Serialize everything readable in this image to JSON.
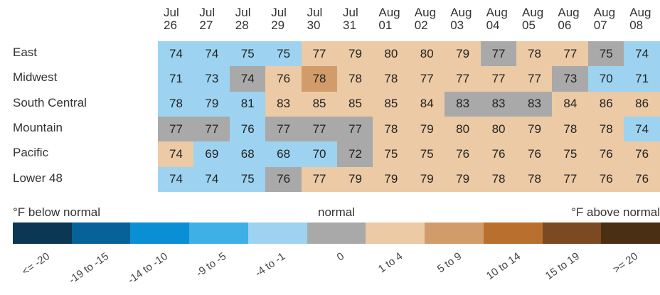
{
  "chart_data": {
    "type": "heatmap",
    "categories": [
      "Jul 26",
      "Jul 27",
      "Jul 28",
      "Jul 29",
      "Jul 30",
      "Jul 31",
      "Aug 01",
      "Aug 02",
      "Aug 03",
      "Aug 04",
      "Aug 05",
      "Aug 06",
      "Aug 07",
      "Aug 08"
    ],
    "series": [
      {
        "name": "East",
        "values": [
          74,
          74,
          75,
          75,
          77,
          79,
          80,
          80,
          79,
          77,
          78,
          77,
          75,
          74
        ],
        "colors": [
          "#9dd3f0",
          "#9dd3f0",
          "#9dd3f0",
          "#9dd3f0",
          "#ebcaa5",
          "#ebcaa5",
          "#ebcaa5",
          "#ebcaa5",
          "#ebcaa5",
          "#a9a9a9",
          "#ebcaa5",
          "#ebcaa5",
          "#a9a9a9",
          "#9dd3f0"
        ]
      },
      {
        "name": "Midwest",
        "values": [
          71,
          73,
          74,
          76,
          78,
          78,
          78,
          77,
          77,
          77,
          77,
          73,
          70,
          71
        ],
        "colors": [
          "#9dd3f0",
          "#9dd3f0",
          "#a9a9a9",
          "#ebcaa5",
          "#d29c6a",
          "#ebcaa5",
          "#ebcaa5",
          "#ebcaa5",
          "#ebcaa5",
          "#ebcaa5",
          "#ebcaa5",
          "#a9a9a9",
          "#9dd3f0",
          "#9dd3f0"
        ]
      },
      {
        "name": "South Central",
        "values": [
          78,
          79,
          81,
          83,
          85,
          85,
          85,
          84,
          83,
          83,
          83,
          84,
          86,
          86
        ],
        "colors": [
          "#9dd3f0",
          "#9dd3f0",
          "#9dd3f0",
          "#ebcaa5",
          "#ebcaa5",
          "#ebcaa5",
          "#ebcaa5",
          "#ebcaa5",
          "#a9a9a9",
          "#a9a9a9",
          "#a9a9a9",
          "#ebcaa5",
          "#ebcaa5",
          "#ebcaa5"
        ]
      },
      {
        "name": "Mountain",
        "values": [
          77,
          77,
          76,
          77,
          77,
          77,
          78,
          79,
          80,
          80,
          79,
          78,
          78,
          74
        ],
        "colors": [
          "#a9a9a9",
          "#a9a9a9",
          "#9dd3f0",
          "#a9a9a9",
          "#a9a9a9",
          "#a9a9a9",
          "#ebcaa5",
          "#ebcaa5",
          "#ebcaa5",
          "#ebcaa5",
          "#ebcaa5",
          "#ebcaa5",
          "#ebcaa5",
          "#9dd3f0"
        ]
      },
      {
        "name": "Pacific",
        "values": [
          74,
          69,
          68,
          68,
          70,
          72,
          75,
          75,
          76,
          76,
          76,
          75,
          76,
          76
        ],
        "colors": [
          "#ebcaa5",
          "#9dd3f0",
          "#9dd3f0",
          "#9dd3f0",
          "#9dd3f0",
          "#a9a9a9",
          "#ebcaa5",
          "#ebcaa5",
          "#ebcaa5",
          "#ebcaa5",
          "#ebcaa5",
          "#ebcaa5",
          "#ebcaa5",
          "#ebcaa5"
        ]
      },
      {
        "name": "Lower 48",
        "values": [
          74,
          74,
          75,
          76,
          77,
          79,
          79,
          79,
          79,
          78,
          78,
          77,
          76,
          76
        ],
        "colors": [
          "#9dd3f0",
          "#9dd3f0",
          "#9dd3f0",
          "#a9a9a9",
          "#ebcaa5",
          "#ebcaa5",
          "#ebcaa5",
          "#ebcaa5",
          "#ebcaa5",
          "#ebcaa5",
          "#ebcaa5",
          "#ebcaa5",
          "#ebcaa5",
          "#ebcaa5"
        ]
      }
    ],
    "legend": {
      "titles": [
        "°F below normal",
        "normal",
        "°F above normal"
      ],
      "labels": [
        "<= -20",
        "-19 to -15",
        "-14 to -10",
        "-9 to -5",
        "-4 to -1",
        "0",
        "1 to 4",
        "5 to 9",
        "10 to 14",
        "15 to 19",
        ">= 20"
      ],
      "colors": [
        "#0b3754",
        "#08629a",
        "#0a8fd4",
        "#3fb0e6",
        "#9dd3f0",
        "#a9a9a9",
        "#ebcaa5",
        "#d29c6a",
        "#b9702e",
        "#7b4a22",
        "#4a2f14"
      ]
    }
  }
}
